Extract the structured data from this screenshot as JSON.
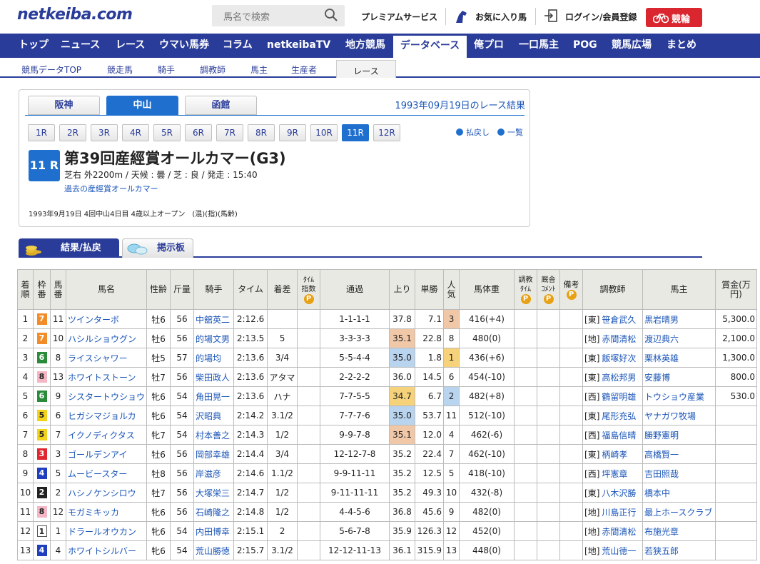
{
  "header": {
    "logo": "netkeiba.com",
    "search_placeholder": "馬名で検索",
    "premium": "プレミアムサービス",
    "favorite": "お気に入り馬",
    "login": "ログイン/会員登録",
    "keirin": "競輪"
  },
  "gnav": [
    {
      "label": "トップ"
    },
    {
      "label": "ニュース"
    },
    {
      "label": "レース"
    },
    {
      "label": "ウマい馬券"
    },
    {
      "label": "コラム"
    },
    {
      "label": "netkeibaTV"
    },
    {
      "label": "地方競馬"
    },
    {
      "label": "データベース",
      "active": true
    },
    {
      "label": "俺プロ"
    },
    {
      "label": "一口馬主"
    },
    {
      "label": "POG"
    },
    {
      "label": "競馬広場"
    },
    {
      "label": "まとめ"
    }
  ],
  "subnav": [
    {
      "label": "競馬データTOP"
    },
    {
      "label": "競走馬"
    },
    {
      "label": "騎手"
    },
    {
      "label": "調教師"
    },
    {
      "label": "馬主"
    },
    {
      "label": "生産者"
    },
    {
      "label": "レース",
      "active": true
    }
  ],
  "race": {
    "venues": [
      {
        "label": "阪神"
      },
      {
        "label": "中山",
        "active": true
      },
      {
        "label": "函館"
      }
    ],
    "date_result": "1993年09月19日のレース結果",
    "races": [
      "1R",
      "2R",
      "3R",
      "4R",
      "5R",
      "6R",
      "7R",
      "8R",
      "9R",
      "10R",
      "11R",
      "12R"
    ],
    "active_race": "11R",
    "link_payout": "払戻し",
    "link_list": "一覧",
    "badge": "11 R",
    "title": "第39回産經賞オールカマー(G3)",
    "info": "芝右 外2200m / 天候 : 曇 / 芝 : 良 / 発走 : 15:40",
    "past_link": "過去の産經賞オールカマー",
    "meta": "1993年9月19日 4回中山4日目 4歳以上オープン　(混)(指)(馬齢)"
  },
  "tabs": {
    "result": "結果/払戻",
    "board": "掲示板"
  },
  "table": {
    "headers": {
      "rank": "着順",
      "waku": "枠番",
      "umaban": "馬番",
      "name": "馬名",
      "sexage": "性齢",
      "weight": "斤量",
      "jockey": "騎手",
      "time": "タイム",
      "margin": "着差",
      "index": "ﾀｲﾑ指数",
      "passing": "通過",
      "last3f": "上り",
      "odds": "単勝",
      "pop": "人気",
      "bodyweight": "馬体重",
      "training": "調教ﾀｲﾑ",
      "comment": "厩舎ｺﾒﾝﾄ",
      "remarks": "備考",
      "trainer": "調教師",
      "owner": "馬主",
      "prize": "賞金(万円)",
      "premium_mark": "P"
    },
    "rows": [
      {
        "rank": "1",
        "waku": "7",
        "umaban": "11",
        "name": "ツインターボ",
        "sexage": "牡6",
        "weight": "56",
        "jockey": "中舘英二",
        "time": "2:12.6",
        "margin": "",
        "passing": "1-1-1-1",
        "last3f": "37.8",
        "odds": "7.1",
        "pop": "3",
        "bodyweight": "416(+4)",
        "trainer_region": "[東]",
        "trainer": "笹倉武久",
        "owner": "黒岩晴男",
        "prize": "5,300.0"
      },
      {
        "rank": "2",
        "waku": "7",
        "umaban": "10",
        "name": "ハシルショウグン",
        "sexage": "牡6",
        "weight": "56",
        "jockey": "的場文男",
        "time": "2:13.5",
        "margin": "5",
        "passing": "3-3-3-3",
        "last3f": "35.1",
        "odds": "22.8",
        "pop": "8",
        "bodyweight": "480(0)",
        "trainer_region": "[地]",
        "trainer": "赤間清松",
        "owner": "渡辺典六",
        "prize": "2,100.0"
      },
      {
        "rank": "3",
        "waku": "6",
        "umaban": "8",
        "name": "ライスシャワー",
        "sexage": "牡5",
        "weight": "57",
        "jockey": "的場均",
        "time": "2:13.6",
        "margin": "3/4",
        "passing": "5-5-4-4",
        "last3f": "35.0",
        "odds": "1.8",
        "pop": "1",
        "bodyweight": "436(+6)",
        "trainer_region": "[東]",
        "trainer": "飯塚好次",
        "owner": "栗林英雄",
        "prize": "1,300.0"
      },
      {
        "rank": "4",
        "waku": "8",
        "umaban": "13",
        "name": "ホワイトストーン",
        "sexage": "牡7",
        "weight": "56",
        "jockey": "柴田政人",
        "time": "2:13.6",
        "margin": "アタマ",
        "passing": "2-2-2-2",
        "last3f": "36.0",
        "odds": "14.5",
        "pop": "6",
        "bodyweight": "454(-10)",
        "trainer_region": "[東]",
        "trainer": "高松邦男",
        "owner": "安藤博",
        "prize": "800.0"
      },
      {
        "rank": "5",
        "waku": "6",
        "umaban": "9",
        "name": "シスタートウショウ",
        "sexage": "牝6",
        "weight": "54",
        "jockey": "角田晃一",
        "time": "2:13.6",
        "margin": "ハナ",
        "passing": "7-7-5-5",
        "last3f": "34.7",
        "odds": "6.7",
        "pop": "2",
        "bodyweight": "482(+8)",
        "trainer_region": "[西]",
        "trainer": "鶴留明雄",
        "owner": "トウショウ産業",
        "prize": "530.0"
      },
      {
        "rank": "6",
        "waku": "5",
        "umaban": "6",
        "name": "ヒガシマジョルカ",
        "sexage": "牝6",
        "weight": "54",
        "jockey": "沢昭典",
        "time": "2:14.2",
        "margin": "3.1/2",
        "passing": "7-7-7-6",
        "last3f": "35.0",
        "odds": "53.7",
        "pop": "11",
        "bodyweight": "512(-10)",
        "trainer_region": "[東]",
        "trainer": "尾形充弘",
        "owner": "ヤナガワ牧場",
        "prize": ""
      },
      {
        "rank": "7",
        "waku": "5",
        "umaban": "7",
        "name": "イクノディクタス",
        "sexage": "牝7",
        "weight": "54",
        "jockey": "村本善之",
        "time": "2:14.3",
        "margin": "1/2",
        "passing": "9-9-7-8",
        "last3f": "35.1",
        "odds": "12.0",
        "pop": "4",
        "bodyweight": "462(-6)",
        "trainer_region": "[西]",
        "trainer": "福島信晴",
        "owner": "勝野憲明",
        "prize": ""
      },
      {
        "rank": "8",
        "waku": "3",
        "umaban": "3",
        "name": "ゴールデンアイ",
        "sexage": "牡6",
        "weight": "56",
        "jockey": "岡部幸雄",
        "time": "2:14.4",
        "margin": "3/4",
        "passing": "12-12-7-8",
        "last3f": "35.2",
        "odds": "22.4",
        "pop": "7",
        "bodyweight": "462(-10)",
        "trainer_region": "[東]",
        "trainer": "柄崎孝",
        "owner": "高橋賢一",
        "prize": ""
      },
      {
        "rank": "9",
        "waku": "4",
        "umaban": "5",
        "name": "ムービースター",
        "sexage": "牡8",
        "weight": "56",
        "jockey": "岸滋彦",
        "time": "2:14.6",
        "margin": "1.1/2",
        "passing": "9-9-11-11",
        "last3f": "35.2",
        "odds": "12.5",
        "pop": "5",
        "bodyweight": "418(-10)",
        "trainer_region": "[西]",
        "trainer": "坪憲章",
        "owner": "吉田照哉",
        "prize": ""
      },
      {
        "rank": "10",
        "waku": "2",
        "umaban": "2",
        "name": "ハシノケンシロウ",
        "sexage": "牡7",
        "weight": "56",
        "jockey": "大塚栄三",
        "time": "2:14.7",
        "margin": "1/2",
        "passing": "9-11-11-11",
        "last3f": "35.2",
        "odds": "49.3",
        "pop": "10",
        "bodyweight": "432(-8)",
        "trainer_region": "[東]",
        "trainer": "八木沢勝",
        "owner": "橋本中",
        "prize": ""
      },
      {
        "rank": "11",
        "waku": "8",
        "umaban": "12",
        "name": "モガミキッカ",
        "sexage": "牝6",
        "weight": "56",
        "jockey": "石崎隆之",
        "time": "2:14.8",
        "margin": "1/2",
        "passing": "4-4-5-6",
        "last3f": "36.8",
        "odds": "45.6",
        "pop": "9",
        "bodyweight": "482(0)",
        "trainer_region": "[地]",
        "trainer": "川島正行",
        "owner": "最上ホースクラブ",
        "prize": ""
      },
      {
        "rank": "12",
        "waku": "1",
        "umaban": "1",
        "name": "ドラールオウカン",
        "sexage": "牝6",
        "weight": "54",
        "jockey": "内田博幸",
        "time": "2:15.1",
        "margin": "2",
        "passing": "5-6-7-8",
        "last3f": "35.9",
        "odds": "126.3",
        "pop": "12",
        "bodyweight": "452(0)",
        "trainer_region": "[地]",
        "trainer": "赤間清松",
        "owner": "布施光章",
        "prize": ""
      },
      {
        "rank": "13",
        "waku": "4",
        "umaban": "4",
        "name": "ホワイトシルバー",
        "sexage": "牝6",
        "weight": "54",
        "jockey": "荒山勝徳",
        "time": "2:15.7",
        "margin": "3.1/2",
        "passing": "12-12-11-13",
        "last3f": "36.1",
        "odds": "315.9",
        "pop": "13",
        "bodyweight": "448(0)",
        "trainer_region": "[地]",
        "trainer": "荒山徳一",
        "owner": "若狭五郎",
        "prize": ""
      }
    ],
    "colors": {
      "waku1": "#ffffff",
      "waku2": "#222222",
      "waku3": "#e0262f",
      "waku4": "#1f3fbf",
      "waku5": "#f2d21c",
      "waku6": "#2a8c3a",
      "waku7": "#f28c28",
      "waku8": "#f4b6c4",
      "rank1_fill": "#f6d27a",
      "rank2_fill": "#b9d4ee",
      "rank3_fill": "#f0c8a8"
    }
  }
}
